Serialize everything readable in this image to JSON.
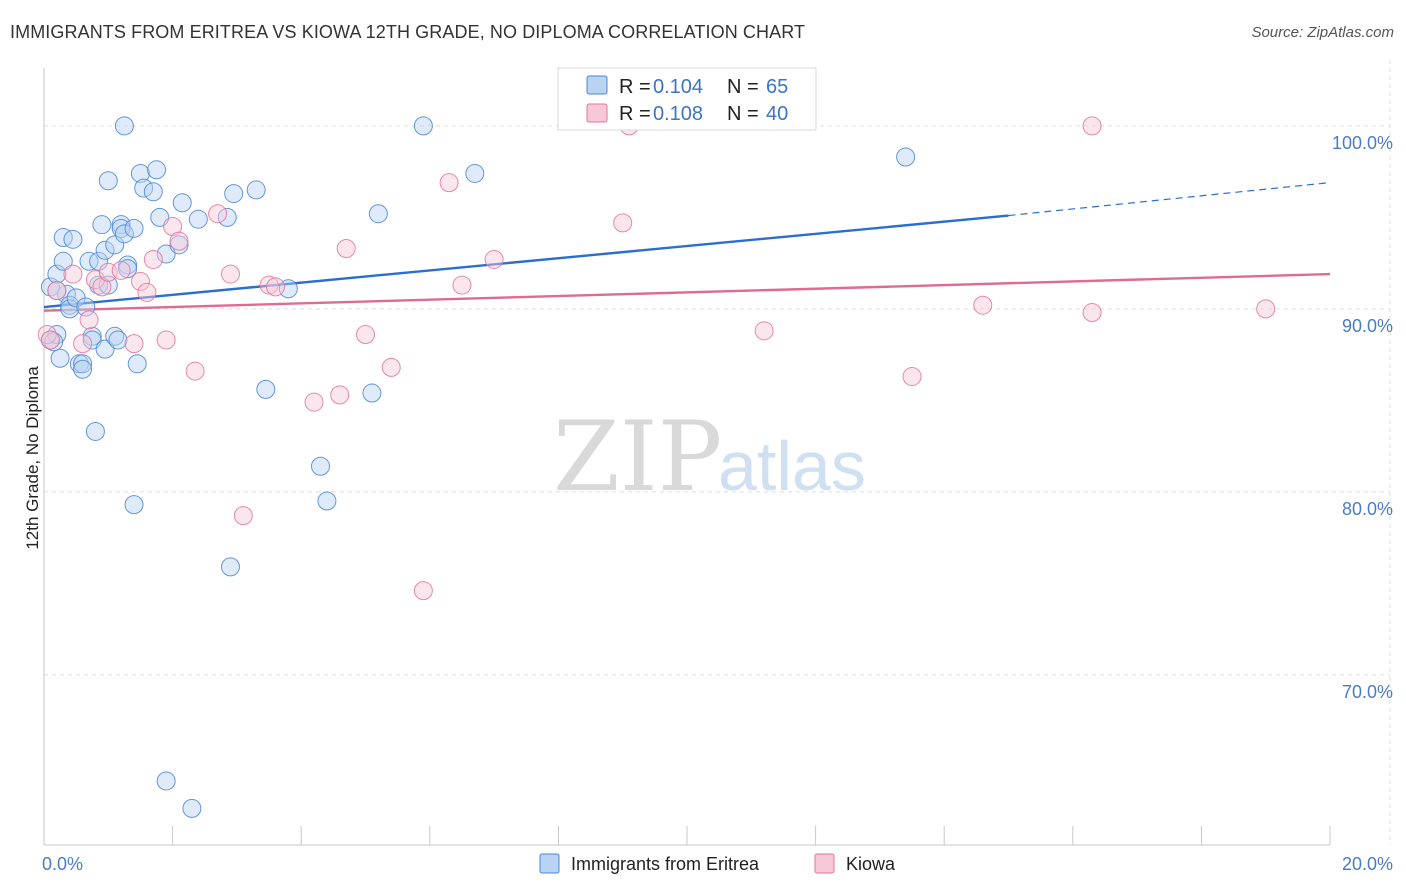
{
  "title": "IMMIGRANTS FROM ERITREA VS KIOWA 12TH GRADE, NO DIPLOMA CORRELATION CHART",
  "source": "Source: ZipAtlas.com",
  "watermark": {
    "zip": "ZIP",
    "atlas": "atlas"
  },
  "colors": {
    "blue": "#4a86d6",
    "blue_fill": "#b9d3f3",
    "pink": "#e2769a",
    "pink_fill": "#f6c8d8",
    "axis_text": "#4a7cc6"
  },
  "legend": {
    "rows": [
      {
        "r_label": "R = ",
        "r_value": "0.104",
        "n_label": "N = ",
        "n_value": "65"
      },
      {
        "r_label": "R = ",
        "r_value": "0.108",
        "n_label": "N = ",
        "n_value": "40"
      }
    ]
  },
  "bottom_legend": [
    "Immigrants from Eritrea",
    "Kiowa"
  ],
  "chart_data": {
    "type": "scatter",
    "title": "IMMIGRANTS FROM ERITREA VS KIOWA 12TH GRADE, NO DIPLOMA CORRELATION CHART",
    "xlabel": "",
    "ylabel": "12th Grade, No Diploma",
    "xlim": [
      0,
      20
    ],
    "ylim": [
      60.7,
      103.6
    ],
    "x_tick_labels": [
      {
        "value": 0,
        "label": "0.0%"
      },
      {
        "value": 20,
        "label": "20.0%"
      }
    ],
    "y_tick_labels": [
      {
        "value": 100,
        "label": "100.0%"
      },
      {
        "value": 90,
        "label": "90.0%"
      },
      {
        "value": 80,
        "label": "80.0%"
      },
      {
        "value": 70,
        "label": "70.0%"
      }
    ],
    "grid": true,
    "legend_position": "top-center",
    "series": [
      {
        "name": "Immigrants from Eritrea",
        "r": 0.104,
        "n": 65,
        "trend": {
          "x": [
            0,
            15
          ],
          "y": [
            90.1,
            95.1
          ],
          "dashed_to": [
            20,
            96.9
          ]
        },
        "points": [
          [
            0.1,
            91.2
          ],
          [
            0.1,
            88.3
          ],
          [
            0.2,
            88.6
          ],
          [
            0.2,
            91.9
          ],
          [
            0.3,
            92.6
          ],
          [
            0.3,
            93.9
          ],
          [
            0.25,
            87.3
          ],
          [
            0.35,
            90.8
          ],
          [
            0.4,
            90.2
          ],
          [
            0.4,
            90.0
          ],
          [
            0.45,
            93.8
          ],
          [
            0.5,
            90.6
          ],
          [
            0.55,
            87.0
          ],
          [
            0.6,
            87.0
          ],
          [
            0.6,
            86.7
          ],
          [
            0.65,
            90.1
          ],
          [
            0.7,
            92.6
          ],
          [
            0.75,
            88.5
          ],
          [
            0.75,
            88.3
          ],
          [
            0.8,
            83.3
          ],
          [
            0.85,
            92.6
          ],
          [
            0.85,
            91.3
          ],
          [
            0.9,
            94.6
          ],
          [
            0.95,
            93.2
          ],
          [
            0.95,
            87.8
          ],
          [
            1.0,
            97.0
          ],
          [
            1.0,
            91.3
          ],
          [
            1.1,
            93.5
          ],
          [
            1.1,
            88.5
          ],
          [
            1.15,
            88.3
          ],
          [
            1.2,
            94.6
          ],
          [
            1.2,
            94.4
          ],
          [
            1.25,
            100.0
          ],
          [
            1.25,
            94.1
          ],
          [
            1.3,
            92.4
          ],
          [
            1.3,
            92.2
          ],
          [
            1.4,
            94.4
          ],
          [
            1.4,
            79.3
          ],
          [
            1.45,
            87.0
          ],
          [
            1.5,
            97.4
          ],
          [
            1.55,
            96.6
          ],
          [
            1.7,
            96.4
          ],
          [
            1.75,
            97.6
          ],
          [
            1.8,
            95.0
          ],
          [
            1.9,
            93.0
          ],
          [
            1.9,
            64.2
          ],
          [
            2.1,
            93.5
          ],
          [
            2.15,
            95.8
          ],
          [
            2.3,
            62.7
          ],
          [
            2.4,
            94.9
          ],
          [
            2.85,
            95.0
          ],
          [
            2.9,
            75.9
          ],
          [
            2.95,
            96.3
          ],
          [
            3.3,
            96.5
          ],
          [
            3.45,
            85.6
          ],
          [
            3.8,
            91.1
          ],
          [
            4.3,
            81.4
          ],
          [
            4.4,
            79.5
          ],
          [
            5.1,
            85.4
          ],
          [
            5.2,
            95.2
          ],
          [
            5.9,
            100.0
          ],
          [
            6.7,
            97.4
          ],
          [
            13.4,
            98.3
          ],
          [
            0.15,
            88.2
          ],
          [
            0.2,
            91.0
          ]
        ]
      },
      {
        "name": "Kiowa",
        "r": 0.108,
        "n": 40,
        "trend": {
          "x": [
            0,
            20
          ],
          "y": [
            89.9,
            91.9
          ]
        },
        "points": [
          [
            0.05,
            88.6
          ],
          [
            0.1,
            88.3
          ],
          [
            0.2,
            91.0
          ],
          [
            0.45,
            91.9
          ],
          [
            0.6,
            88.1
          ],
          [
            0.7,
            89.4
          ],
          [
            0.8,
            91.6
          ],
          [
            0.9,
            91.2
          ],
          [
            1.0,
            92.0
          ],
          [
            1.2,
            92.1
          ],
          [
            1.4,
            88.1
          ],
          [
            1.5,
            91.5
          ],
          [
            1.6,
            90.9
          ],
          [
            1.7,
            92.7
          ],
          [
            1.9,
            88.3
          ],
          [
            2.0,
            94.5
          ],
          [
            2.1,
            93.7
          ],
          [
            2.35,
            86.6
          ],
          [
            2.7,
            95.2
          ],
          [
            2.9,
            91.9
          ],
          [
            3.1,
            78.7
          ],
          [
            3.5,
            91.3
          ],
          [
            3.6,
            91.2
          ],
          [
            4.2,
            84.9
          ],
          [
            4.6,
            85.3
          ],
          [
            4.7,
            93.3
          ],
          [
            5.0,
            88.6
          ],
          [
            5.4,
            86.8
          ],
          [
            5.9,
            74.6
          ],
          [
            6.3,
            96.9
          ],
          [
            6.5,
            91.3
          ],
          [
            7.0,
            92.7
          ],
          [
            9.0,
            94.7
          ],
          [
            9.1,
            100.0
          ],
          [
            11.2,
            88.8
          ],
          [
            13.5,
            86.3
          ],
          [
            14.6,
            90.2
          ],
          [
            16.3,
            100.0
          ],
          [
            16.3,
            89.8
          ],
          [
            19.0,
            90.0
          ]
        ]
      }
    ]
  }
}
